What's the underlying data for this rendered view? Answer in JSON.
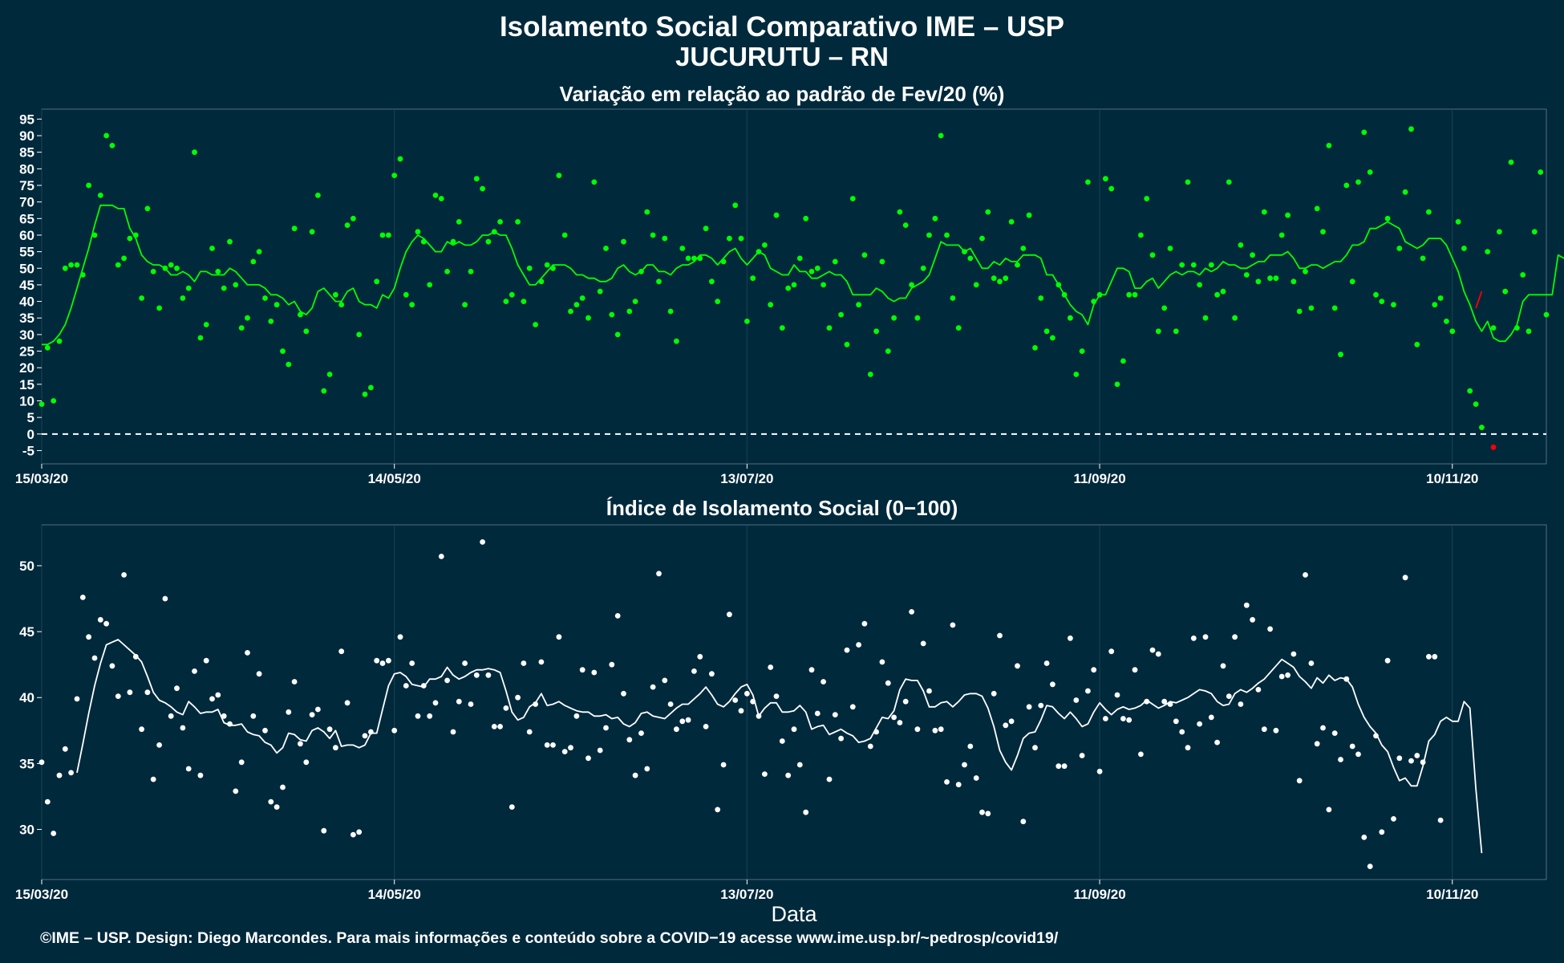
{
  "title": "Isolamento Social Comparativo IME – USP",
  "subtitle": "JUCURUTU – RN",
  "footer": "©IME – USP. Design: Diego Marcondes. Para mais informações e conteúdo sobre a COVID−19 acesse www.ime.usp.br/~pedrosp/covid19/",
  "colors": {
    "background": "#00293c",
    "top_points": "#00ff00",
    "top_line": "#00ff00",
    "highlight": "#ff0000",
    "bottom_points": "#ffffff",
    "bottom_line": "#ffffff",
    "zero_line": "#ffffff"
  },
  "chart_data": [
    {
      "type": "scatter",
      "title": "Variação em relação ao padrão de Fev/20 (%)",
      "xlabel": "",
      "ylabel": "",
      "x_ticks": [
        "15/03/20",
        "14/05/20",
        "13/07/20",
        "11/09/20",
        "10/11/20"
      ],
      "x_range": [
        "15/03/20",
        "26/11/20"
      ],
      "ylim": [
        -9,
        98
      ],
      "y_ticks": [
        -5,
        0,
        5,
        10,
        15,
        20,
        25,
        30,
        35,
        40,
        45,
        50,
        55,
        60,
        65,
        70,
        75,
        80,
        85,
        90,
        95
      ],
      "reference_line": {
        "y": 0,
        "style": "dashed"
      },
      "grid": true,
      "series": [
        {
          "kind": "points",
          "values": [
            9,
            26,
            10,
            28,
            50,
            51,
            51,
            48,
            75,
            60,
            72,
            90,
            87,
            51,
            53,
            59,
            60,
            41,
            68,
            49,
            38,
            50,
            51,
            50,
            41,
            44,
            85,
            29,
            33,
            56,
            49,
            44,
            58,
            45,
            32,
            35,
            52,
            55,
            41,
            34,
            39,
            25,
            21,
            62,
            36,
            31,
            61,
            72,
            13,
            18,
            42,
            39,
            63,
            65,
            30,
            12,
            14,
            46,
            60,
            60,
            78,
            83,
            42,
            39,
            61,
            58,
            45,
            72,
            71,
            49,
            58,
            64,
            39,
            49,
            77,
            74,
            58,
            61,
            64,
            40,
            42,
            64,
            40,
            50,
            33,
            46,
            51,
            50,
            78,
            60,
            37,
            39,
            41,
            35,
            76,
            43,
            56,
            36,
            30,
            58,
            37,
            40,
            49,
            67,
            60,
            46,
            59,
            37,
            28,
            56,
            53,
            53,
            53,
            62,
            46,
            40,
            52,
            59,
            69,
            59,
            34,
            47,
            55,
            57,
            39,
            66,
            32,
            44,
            45,
            53,
            65,
            49,
            50,
            45,
            32,
            52,
            36,
            27,
            71,
            39,
            54,
            18,
            31,
            52,
            25,
            35,
            67,
            63,
            45,
            35,
            50,
            60,
            65,
            90,
            60,
            41,
            32,
            55,
            53,
            45,
            59,
            67,
            47,
            46,
            47,
            64,
            51,
            56,
            66,
            26,
            41,
            31,
            29,
            45,
            42,
            35,
            18,
            25,
            76,
            40,
            42,
            77,
            74,
            15,
            22,
            42,
            42,
            60,
            71,
            54,
            31,
            38,
            56,
            31,
            51,
            76,
            51,
            45,
            35,
            51,
            42,
            43,
            76,
            35,
            57,
            48,
            54,
            46,
            67,
            47,
            47,
            60,
            66,
            46,
            37,
            49,
            38,
            68,
            61,
            87,
            38,
            24,
            75,
            46,
            76,
            91,
            79,
            42,
            40,
            65,
            39,
            56,
            73,
            92,
            27,
            53,
            67,
            39,
            41,
            34,
            31,
            64,
            56,
            13,
            9,
            2,
            55,
            32,
            61,
            43,
            82,
            32,
            48,
            31,
            61,
            79,
            36
          ]
        },
        {
          "kind": "line",
          "name": "",
          "values": [
            27,
            27,
            28,
            30,
            33,
            38,
            44,
            50,
            56,
            63,
            69,
            69,
            69,
            68,
            68,
            62,
            59,
            54,
            52,
            51,
            51,
            50,
            48,
            48,
            49,
            48,
            46,
            49,
            49,
            48,
            48,
            48,
            50,
            49,
            47,
            45,
            45,
            45,
            44,
            42,
            42,
            41,
            39,
            40,
            37,
            36,
            38,
            43,
            44,
            42,
            40,
            40,
            43,
            44,
            40,
            39,
            39,
            38,
            42,
            41,
            44,
            50,
            55,
            58,
            60,
            59,
            57,
            55,
            55,
            58,
            57,
            58,
            57,
            57,
            58,
            60,
            60,
            61,
            60,
            60,
            56,
            51,
            48,
            45,
            45,
            47,
            49,
            51,
            51,
            51,
            50,
            48,
            48,
            47,
            47,
            46,
            46,
            47,
            50,
            51,
            49,
            48,
            49,
            51,
            51,
            49,
            49,
            48,
            50,
            51,
            51,
            52,
            54,
            54,
            53,
            51,
            53,
            55,
            56,
            53,
            51,
            53,
            55,
            54,
            50,
            49,
            48,
            48,
            51,
            49,
            49,
            47,
            47,
            48,
            49,
            48,
            48,
            46,
            42,
            42,
            42,
            42,
            44,
            43,
            41,
            40,
            41,
            41,
            44,
            45,
            46,
            48,
            53,
            58,
            57,
            57,
            57,
            55,
            56,
            53,
            50,
            50,
            52,
            51,
            53,
            52,
            52,
            54,
            54,
            54,
            53,
            48,
            48,
            45,
            42,
            39,
            37,
            36,
            33,
            39,
            42,
            42,
            46,
            50,
            50,
            49,
            44,
            44,
            46,
            47,
            44,
            46,
            48,
            49,
            48,
            49,
            49,
            48,
            50,
            49,
            50,
            52,
            51,
            51,
            50,
            50,
            51,
            52,
            52,
            54,
            54,
            54,
            55,
            53,
            50,
            50,
            51,
            51,
            50,
            51,
            52,
            52,
            54,
            57,
            57,
            58,
            62,
            62,
            63,
            64,
            63,
            62,
            58,
            57,
            56,
            57,
            59,
            59,
            59,
            57,
            53,
            49,
            43,
            39,
            34,
            31,
            34,
            29,
            28,
            28,
            30,
            33,
            40,
            42,
            42,
            42,
            42,
            42,
            54,
            53
          ]
        },
        {
          "kind": "line",
          "name": "",
          "color": "highlight",
          "values": [
            {
              "x": "14/11/20",
              "y": 38
            },
            {
              "x": "15/11/20",
              "y": 43
            }
          ]
        },
        {
          "kind": "points",
          "color": "highlight",
          "values": [
            {
              "x": "17/11/20",
              "y": -4
            }
          ]
        }
      ]
    },
    {
      "type": "scatter",
      "title": "Índice de Isolamento Social (0−100)",
      "xlabel": "Data",
      "ylabel": "",
      "x_ticks": [
        "15/03/20",
        "14/05/20",
        "13/07/20",
        "11/09/20",
        "10/11/20"
      ],
      "x_range": [
        "15/03/20",
        "26/11/20"
      ],
      "ylim": [
        26.2,
        53.1
      ],
      "y_ticks": [
        30,
        35,
        40,
        45,
        50
      ],
      "grid": true,
      "series": [
        {
          "kind": "points",
          "values": [
            35.1,
            32.1,
            29.7,
            34.1,
            36.1,
            34.3,
            39.9,
            47.6,
            44.6,
            43,
            45.9,
            45.6,
            42.4,
            40.1,
            49.3,
            40.4,
            43.1,
            37.6,
            40.4,
            33.8,
            36.4,
            47.5,
            38.6,
            40.7,
            37.7,
            34.6,
            42,
            34.1,
            42.8,
            39.9,
            40.2,
            38.6,
            38,
            32.9,
            35.1,
            43.4,
            38.6,
            41.8,
            37.5,
            32.1,
            31.7,
            33.2,
            38.9,
            41.2,
            36.5,
            35.1,
            38.7,
            39.1,
            29.9,
            37.6,
            36.2,
            43.5,
            39.6,
            29.6,
            29.8,
            37.1,
            37.4,
            42.8,
            42.6,
            42.8,
            37.5,
            44.6,
            40.9,
            42.6,
            38.6,
            40.9,
            38.6,
            39.6,
            50.7,
            41.3,
            37.4,
            39.7,
            42.6,
            39.5,
            41.7,
            51.8,
            41.7,
            37.8,
            37.8,
            39.2,
            31.7,
            40,
            42.6,
            37.4,
            39.5,
            42.7,
            36.4,
            36.4,
            44.6,
            35.9,
            36.2,
            38.6,
            42.1,
            35.4,
            41.9,
            36,
            37.7,
            42.5,
            46.2,
            40.3,
            36.8,
            34.1,
            37.3,
            34.6,
            40.8,
            49.4,
            41.3,
            39.5,
            37.6,
            38.2,
            38.3,
            42,
            43.1,
            37.8,
            41.8,
            31.5,
            34.9,
            46.3,
            39.8,
            39,
            40.3,
            39.7,
            38.6,
            34.2,
            42.3,
            40.1,
            36.7,
            34.1,
            37.6,
            34.9,
            31.3,
            42.1,
            38.8,
            41.2,
            33.8,
            38.7,
            36.9,
            43.6,
            39.3,
            44,
            45.6,
            36.3,
            37.4,
            42.7,
            41.1,
            38.5,
            38.1,
            39.7,
            46.5,
            37.6,
            44.1,
            40.5,
            37.5,
            37.6,
            33.6,
            45.5,
            33.4,
            34.9,
            36.3,
            33.9,
            31.3,
            31.2,
            40.3,
            44.7,
            37.9,
            38.2,
            42.4,
            30.6,
            39.3,
            36.2,
            39.4,
            42.6,
            41,
            34.8,
            34.8,
            44.5,
            39.8,
            35.6,
            40.5,
            42.1,
            34.4,
            38.4,
            43.5,
            40.2,
            38.4,
            38.3,
            42.1,
            35.7,
            39.7,
            43.6,
            43.3,
            39.7,
            39.5,
            38.2,
            37.4,
            36.2,
            44.5,
            38,
            44.6,
            38.5,
            36.6,
            42.4,
            40.1,
            44.6,
            39.5,
            47,
            45.9,
            40.6,
            37.6,
            45.2,
            37.5,
            41.6,
            41.7,
            43.3,
            33.7,
            49.3,
            42.6,
            36.5,
            37.7,
            31.5,
            37.3,
            35.3,
            41.4,
            36.3,
            35.7,
            29.4,
            27.2,
            37.1,
            29.8,
            42.8,
            30.8,
            35.4,
            49.1,
            35.2,
            35.6,
            35.1,
            43.1,
            43.1,
            30.7
          ]
        },
        {
          "kind": "line",
          "name": "",
          "values": [
            34.3,
            36.5,
            38.8,
            40.9,
            42.6,
            44,
            44.2,
            44.4,
            44,
            43.6,
            43.2,
            42.7,
            41.6,
            40.4,
            39.8,
            39.6,
            39.3,
            38.9,
            38.7,
            39.7,
            39.3,
            38.8,
            38.9,
            38.9,
            39.1,
            38.1,
            37.9,
            37.9,
            38,
            37.4,
            37.2,
            37.1,
            36.6,
            36.4,
            35.8,
            36.2,
            37.3,
            37.2,
            36.8,
            36.7,
            37.5,
            37.7,
            37.4,
            36.9,
            37.5,
            36.3,
            36.4,
            36.4,
            36.2,
            36.4,
            37.3,
            37.3,
            39.1,
            40.9,
            41.8,
            41.9,
            41.6,
            41,
            40.9,
            40.8,
            41.4,
            41.4,
            41.6,
            42.3,
            41.7,
            41.4,
            41.6,
            41.9,
            42.1,
            42.1,
            42.2,
            42.1,
            41.9,
            40.5,
            38.9,
            38.3,
            38.5,
            39.3,
            39.6,
            40.3,
            39.4,
            39.5,
            39.7,
            39.4,
            39.2,
            39,
            38.9,
            38.9,
            38.6,
            38.6,
            38.7,
            38.4,
            38.5,
            38,
            37.8,
            38.1,
            38.8,
            38.9,
            38.6,
            38.5,
            38.4,
            38.8,
            39.2,
            39.5,
            39.5,
            39.9,
            40.3,
            40.8,
            40.2,
            39.5,
            39.3,
            39.7,
            40.3,
            40.8,
            41,
            40.2,
            38.6,
            39.2,
            39.6,
            39.6,
            38.9,
            38.9,
            39,
            39.4,
            38.9,
            37.6,
            37.8,
            37.9,
            37.2,
            37.4,
            37.6,
            37.3,
            37.1,
            36.6,
            36.7,
            36.9,
            37.7,
            38.5,
            38.4,
            39,
            40.6,
            41.4,
            41.3,
            41.3,
            40.5,
            39.3,
            39.3,
            39.6,
            39.7,
            39.3,
            39.7,
            40.2,
            40.3,
            40.3,
            40.1,
            39.2,
            37.8,
            36,
            35.1,
            34.5,
            35.6,
            36.9,
            37.3,
            37.4,
            38.3,
            39.4,
            39.3,
            38.8,
            38.4,
            38.9,
            38.4,
            37.8,
            38,
            38.9,
            39.6,
            39.1,
            38.7,
            39.1,
            39.3,
            39.1,
            39.2,
            39.4,
            39.8,
            39.5,
            39.2,
            39.4,
            39.7,
            39.6,
            39.8,
            40,
            40.3,
            40.6,
            40.5,
            40.3,
            39.7,
            39.4,
            39.5,
            40.3,
            40.6,
            40.4,
            40.7,
            41.1,
            41.4,
            41.9,
            42.4,
            42.9,
            42.6,
            42.3,
            41.6,
            41.2,
            40.7,
            41.5,
            41.1,
            41.7,
            41.3,
            41.5,
            41.4,
            40.8,
            39.5,
            38.5,
            37.8,
            37.3,
            36.4,
            35.9,
            34.7,
            33.7,
            33.9,
            33.3,
            33.3,
            34.8,
            36.7,
            37.2,
            38.2,
            38.5,
            38.2,
            38.2,
            39.7,
            39.2,
            33.1,
            28.2
          ]
        }
      ]
    }
  ]
}
